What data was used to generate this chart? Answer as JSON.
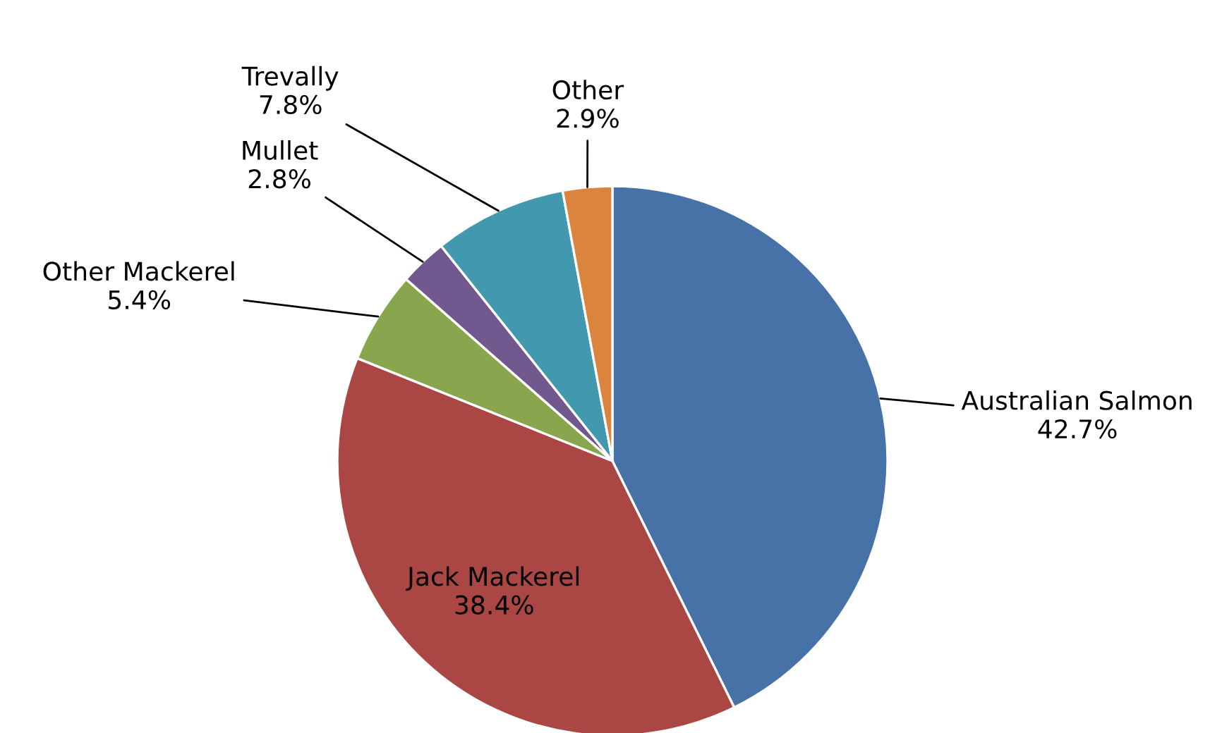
{
  "chart_data": {
    "type": "pie",
    "categories": [
      "Australian Salmon",
      "Jack Mackerel",
      "Other Mackerel",
      "Mullet",
      "Trevally",
      "Other"
    ],
    "values": [
      42.7,
      38.4,
      5.4,
      2.8,
      7.8,
      2.9
    ],
    "value_labels": [
      "42.7%",
      "38.4%",
      "5.4%",
      "2.8%",
      "7.8%",
      "2.9%"
    ],
    "colors": [
      "#4672a8",
      "#aa4744",
      "#89a54e",
      "#71588f",
      "#4198af",
      "#db843d"
    ],
    "legend": false
  }
}
